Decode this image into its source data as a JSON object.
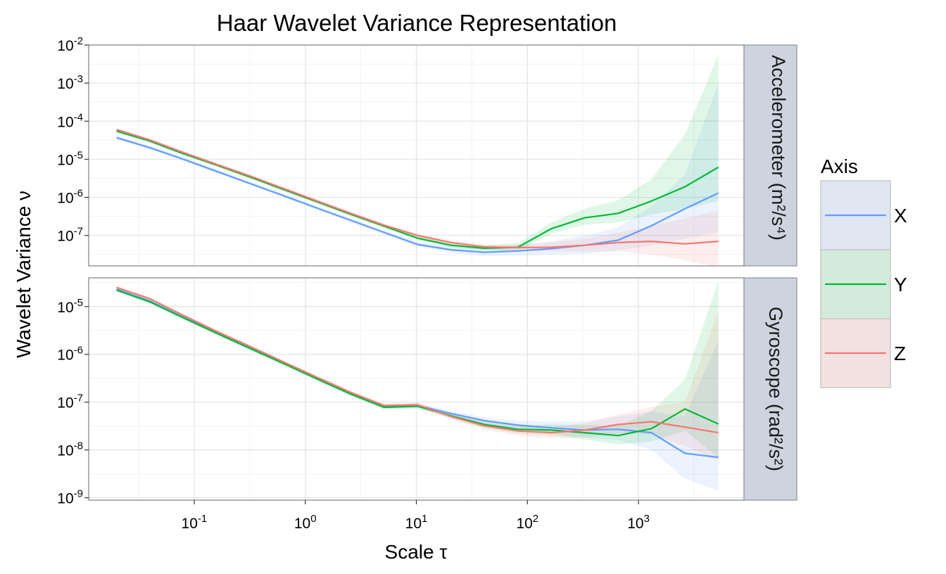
{
  "chart_data": {
    "type": "line",
    "title": "Haar Wavelet Variance Representation",
    "xlabel": "Scale τ",
    "ylabel": "Wavelet Variance ν",
    "x_scale": "log10",
    "xlim_log10": [
      -1.95,
      3.95
    ],
    "x_ticks": [
      {
        "base": "10",
        "exp": "-1",
        "log": -1
      },
      {
        "base": "10",
        "exp": "0",
        "log": 0
      },
      {
        "base": "10",
        "exp": "1",
        "log": 1
      },
      {
        "base": "10",
        "exp": "2",
        "log": 2
      },
      {
        "base": "10",
        "exp": "3",
        "log": 3
      }
    ],
    "x": [
      0.02,
      0.04,
      0.08,
      0.16,
      0.32,
      0.64,
      1.28,
      2.56,
      5.12,
      10.24,
      20.48,
      40.96,
      81.92,
      163.84,
      327.68,
      655.36,
      1310.72,
      2621.44,
      5242.88
    ],
    "legend": {
      "title": "Axis",
      "entries": [
        {
          "name": "X",
          "color": "#619CFF"
        },
        {
          "name": "Y",
          "color": "#00BA38"
        },
        {
          "name": "Z",
          "color": "#F8766D"
        }
      ]
    },
    "panels": [
      {
        "strip": "Accelerometer (m²/s⁴)",
        "ylim_log10": [
          -7.8,
          -2
        ],
        "y_ticks": [
          {
            "base": "10",
            "exp": "-2",
            "log": -2
          },
          {
            "base": "10",
            "exp": "-3",
            "log": -3
          },
          {
            "base": "10",
            "exp": "-4",
            "log": -4
          },
          {
            "base": "10",
            "exp": "-5",
            "log": -5
          },
          {
            "base": "10",
            "exp": "-6",
            "log": -6
          },
          {
            "base": "10",
            "exp": "-7",
            "log": -7
          }
        ],
        "series": [
          {
            "name": "X",
            "values": [
              3.7e-05,
              2e-05,
              1e-05,
              4.8e-06,
              2.3e-06,
              1.1e-06,
              5.2e-07,
              2.5e-07,
              1.2e-07,
              5.8e-08,
              4.2e-08,
              3.6e-08,
              3.9e-08,
              4.5e-08,
              5.5e-08,
              7.5e-08,
              1.8e-07,
              5e-07,
              1.3e-06
            ],
            "lower": [
              3.3e-05,
              1.8e-05,
              9e-06,
              4.3e-06,
              2.1e-06,
              1e-06,
              4.7e-07,
              2.2e-07,
              1.05e-07,
              5e-08,
              3.5e-08,
              2.9e-08,
              3e-08,
              3.1e-08,
              3.3e-08,
              4e-08,
              5.5e-08,
              8e-08,
              1.2e-07
            ],
            "upper": [
              4.2e-05,
              2.3e-05,
              1.15e-05,
              5.4e-06,
              2.6e-06,
              1.25e-06,
              5.8e-07,
              2.8e-07,
              1.35e-07,
              6.8e-08,
              5.1e-08,
              4.6e-08,
              5.4e-08,
              7e-08,
              1e-07,
              1.6e-07,
              6e-07,
              4e-06,
              0.001
            ]
          },
          {
            "name": "Y",
            "values": [
              5.5e-05,
              3e-05,
              1.4e-05,
              7e-06,
              3.4e-06,
              1.6e-06,
              7.6e-07,
              3.6e-07,
              1.75e-07,
              8.5e-08,
              5.5e-08,
              4.6e-08,
              4.9e-08,
              1.5e-07,
              2.9e-07,
              3.8e-07,
              8e-07,
              1.9e-06,
              6.2e-06
            ],
            "lower": [
              5e-05,
              2.7e-05,
              1.27e-05,
              6.4e-06,
              3.1e-06,
              1.45e-06,
              6.9e-07,
              3.25e-07,
              1.6e-07,
              7.6e-08,
              4.8e-08,
              3.9e-08,
              4e-08,
              1.1e-07,
              1.9e-07,
              2.2e-07,
              3.5e-07,
              5e-07,
              8e-07
            ],
            "upper": [
              6.1e-05,
              3.3e-05,
              1.55e-05,
              7.7e-06,
              3.75e-06,
              1.75e-06,
              8.4e-07,
              4e-07,
              1.95e-07,
              9.6e-08,
              6.4e-08,
              5.5e-08,
              6.2e-08,
              2.2e-07,
              5e-07,
              8.5e-07,
              3e-06,
              4.5e-05,
              0.0055
            ]
          },
          {
            "name": "Z",
            "values": [
              6e-05,
              3.2e-05,
              1.5e-05,
              7.3e-06,
              3.6e-06,
              1.7e-06,
              8e-07,
              3.8e-07,
              1.85e-07,
              1e-07,
              6.5e-08,
              5e-08,
              4.8e-08,
              4.9e-08,
              5.5e-08,
              6.5e-08,
              7e-08,
              6e-08,
              7e-08
            ],
            "lower": [
              5.4e-05,
              2.9e-05,
              1.35e-05,
              6.6e-06,
              3.25e-06,
              1.55e-06,
              7.3e-07,
              3.45e-07,
              1.68e-07,
              8.9e-08,
              5.7e-08,
              4.3e-08,
              4e-08,
              3.8e-08,
              3.8e-08,
              3.8e-08,
              3.2e-08,
              2.2e-08,
              1.5e-08
            ],
            "upper": [
              6.6e-05,
              3.5e-05,
              1.65e-05,
              8e-06,
              3.95e-06,
              1.85e-06,
              8.8e-07,
              4.2e-07,
              2.05e-07,
              1.12e-07,
              7.4e-08,
              5.9e-08,
              5.8e-08,
              6.5e-08,
              8.2e-08,
              1.2e-07,
              1.8e-07,
              2.8e-07,
              4.5e-07
            ]
          }
        ]
      },
      {
        "strip": "Gyroscope (rad²/s²)",
        "ylim_log10": [
          -9.05,
          -4.4
        ],
        "y_ticks": [
          {
            "base": "10",
            "exp": "-5",
            "log": -5
          },
          {
            "base": "10",
            "exp": "-6",
            "log": -6
          },
          {
            "base": "10",
            "exp": "-7",
            "log": -7
          },
          {
            "base": "10",
            "exp": "-8",
            "log": -8
          },
          {
            "base": "10",
            "exp": "-9",
            "log": -9
          }
        ],
        "series": [
          {
            "name": "X",
            "values": [
              2.3e-05,
              1.3e-05,
              6e-06,
              2.8e-06,
              1.35e-06,
              6.5e-07,
              3.1e-07,
              1.5e-07,
              8e-08,
              8.5e-08,
              5.8e-08,
              4.1e-08,
              3.3e-08,
              2.9e-08,
              2.6e-08,
              2.7e-08,
              2.3e-08,
              8.5e-09,
              7e-09
            ],
            "lower": [
              2.15e-05,
              1.2e-05,
              5.6e-06,
              2.6e-06,
              1.25e-06,
              6e-07,
              2.85e-07,
              1.38e-07,
              7.3e-08,
              7.6e-08,
              5.1e-08,
              3.5e-08,
              2.7e-08,
              2.2e-08,
              1.8e-08,
              1.6e-08,
              1e-08,
              2.5e-09,
              1.4e-09
            ],
            "upper": [
              2.45e-05,
              1.4e-05,
              6.4e-06,
              3e-06,
              1.45e-06,
              7e-07,
              3.35e-07,
              1.62e-07,
              8.7e-08,
              9.5e-08,
              6.6e-08,
              4.8e-08,
              4.1e-08,
              3.9e-08,
              4e-08,
              5e-08,
              6.5e-08,
              5e-08,
              2e-06
            ]
          },
          {
            "name": "Y",
            "values": [
              2.2e-05,
              1.25e-05,
              5.8e-06,
              2.75e-06,
              1.32e-06,
              6.4e-07,
              3.05e-07,
              1.48e-07,
              7.8e-08,
              8.2e-08,
              5.2e-08,
              3.4e-08,
              2.7e-08,
              2.6e-08,
              2.3e-08,
              2e-08,
              2.8e-08,
              7.2e-08,
              3.5e-08
            ],
            "lower": [
              2.05e-05,
              1.17e-05,
              5.4e-06,
              2.55e-06,
              1.22e-06,
              5.9e-07,
              2.8e-07,
              1.36e-07,
              7.1e-08,
              7.3e-08,
              4.6e-08,
              2.9e-08,
              2.2e-08,
              2e-08,
              1.65e-08,
              1.3e-08,
              1.5e-08,
              2.5e-08,
              7e-09
            ],
            "upper": [
              2.35e-05,
              1.33e-05,
              6.2e-06,
              2.95e-06,
              1.42e-06,
              6.9e-07,
              3.3e-07,
              1.6e-07,
              8.5e-08,
              9.1e-08,
              5.9e-08,
              4e-08,
              3.3e-08,
              3.4e-08,
              3.3e-08,
              3.2e-08,
              6.5e-08,
              3e-07,
              3.5e-05
            ]
          },
          {
            "name": "Z",
            "values": [
              2.5e-05,
              1.45e-05,
              6.5e-06,
              3e-06,
              1.45e-06,
              6.9e-07,
              3.3e-07,
              1.6e-07,
              8.5e-08,
              8.8e-08,
              5e-08,
              3.2e-08,
              2.5e-08,
              2.3e-08,
              2.6e-08,
              3.4e-08,
              3.9e-08,
              3e-08,
              2.3e-08
            ],
            "lower": [
              2.33e-05,
              1.35e-05,
              6.05e-06,
              2.8e-06,
              1.35e-06,
              6.4e-07,
              3.05e-07,
              1.48e-07,
              7.8e-08,
              7.9e-08,
              4.4e-08,
              2.7e-08,
              2e-08,
              1.75e-08,
              1.85e-08,
              2.2e-08,
              2.1e-08,
              1.2e-08,
              6e-09
            ],
            "upper": [
              2.68e-05,
              1.55e-05,
              6.95e-06,
              3.2e-06,
              1.55e-06,
              7.4e-07,
              3.55e-07,
              1.72e-07,
              9.2e-08,
              9.8e-08,
              5.7e-08,
              3.8e-08,
              3.1e-08,
              3e-08,
              3.6e-08,
              5.5e-08,
              8e-08,
              1e-07,
              8e-06
            ]
          }
        ]
      }
    ]
  }
}
